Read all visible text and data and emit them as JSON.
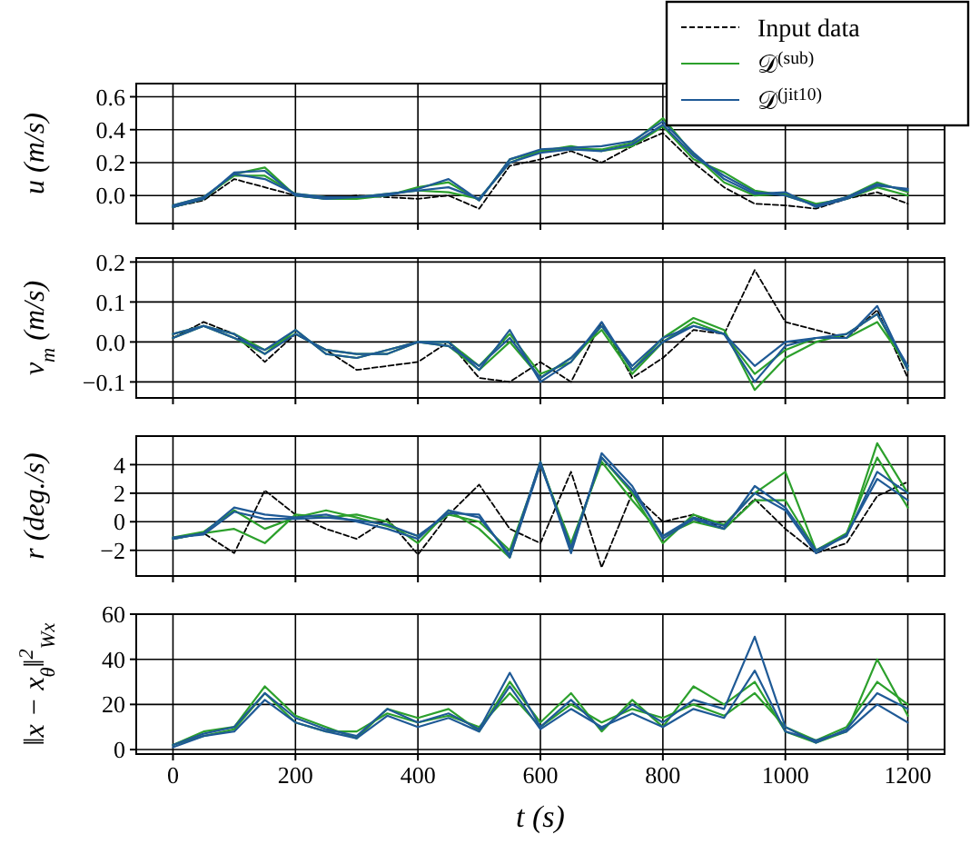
{
  "chart_data": [
    {
      "type": "line",
      "ylabel": "u (m/s)",
      "x": [
        0,
        50,
        100,
        150,
        200,
        250,
        300,
        350,
        400,
        450,
        500,
        550,
        600,
        650,
        700,
        750,
        800,
        850,
        900,
        950,
        1000,
        1050,
        1100,
        1150,
        1200
      ],
      "xlim": [
        -60,
        1260
      ],
      "xticks": [
        0,
        200,
        400,
        600,
        800,
        1000,
        1200
      ],
      "ylim": [
        -0.17,
        0.68
      ],
      "yticks": [
        {
          "value": 0,
          "label": "0.0"
        },
        {
          "value": 0.2,
          "label": "0.2"
        },
        {
          "value": 0.4,
          "label": "0.4"
        },
        {
          "value": 0.6,
          "label": "0.6"
        }
      ],
      "tick_labels": "y",
      "grid": true,
      "legend": "top right",
      "series": [
        {
          "name": "Input data",
          "color": "#000000",
          "line_style": "dashed",
          "values": [
            -0.07,
            -0.03,
            0.1,
            0.05,
            0.0,
            -0.02,
            0.0,
            -0.01,
            -0.02,
            0.0,
            -0.08,
            0.18,
            0.22,
            0.27,
            0.2,
            0.3,
            0.38,
            0.2,
            0.05,
            -0.05,
            -0.06,
            -0.08,
            -0.02,
            0.02,
            -0.05
          ]
        },
        {
          "name": "𝒟$^{(sub)}$",
          "color": "#2ca02c",
          "values": [
            -0.07,
            -0.02,
            0.13,
            0.17,
            0.0,
            -0.02,
            -0.02,
            0.0,
            0.05,
            0.08,
            -0.03,
            0.22,
            0.27,
            0.28,
            0.28,
            0.32,
            0.47,
            0.25,
            0.08,
            0.0,
            0.01,
            -0.05,
            -0.02,
            0.05,
            0.0
          ]
        },
        {
          "color": "#2ca02c",
          "values": [
            -0.06,
            -0.01,
            0.12,
            0.12,
            0.01,
            -0.01,
            -0.01,
            0.01,
            0.03,
            0.02,
            -0.02,
            0.2,
            0.27,
            0.3,
            0.27,
            0.3,
            0.42,
            0.22,
            0.14,
            0.03,
            0.0,
            -0.06,
            -0.01,
            0.08,
            0.02
          ]
        },
        {
          "name": "𝒟$^{(jit10)}$",
          "color": "#1f5a96",
          "values": [
            -0.07,
            -0.02,
            0.14,
            0.15,
            0.0,
            -0.02,
            -0.01,
            0.0,
            0.04,
            0.1,
            -0.03,
            0.22,
            0.28,
            0.29,
            0.3,
            0.33,
            0.45,
            0.26,
            0.1,
            0.01,
            0.02,
            -0.07,
            -0.02,
            0.06,
            0.04
          ]
        },
        {
          "color": "#1f5a96",
          "values": [
            -0.06,
            -0.01,
            0.13,
            0.1,
            0.01,
            -0.01,
            -0.01,
            0.01,
            0.03,
            0.05,
            -0.02,
            0.2,
            0.26,
            0.28,
            0.27,
            0.31,
            0.43,
            0.24,
            0.12,
            0.02,
            0.0,
            -0.06,
            -0.01,
            0.07,
            0.03
          ]
        }
      ]
    },
    {
      "type": "line",
      "ylabel": "v$_{m}$ (m/s)",
      "x": [
        0,
        50,
        100,
        150,
        200,
        250,
        300,
        350,
        400,
        450,
        500,
        550,
        600,
        650,
        700,
        750,
        800,
        850,
        900,
        950,
        1000,
        1050,
        1100,
        1150,
        1200
      ],
      "xlim": [
        -60,
        1260
      ],
      "xticks": [
        0,
        200,
        400,
        600,
        800,
        1000,
        1200
      ],
      "ylim": [
        -0.14,
        0.21
      ],
      "yticks": [
        {
          "value": -0.1,
          "label": "−0.1"
        },
        {
          "value": 0,
          "label": "0.0"
        },
        {
          "value": 0.1,
          "label": "0.1"
        },
        {
          "value": 0.2,
          "label": "0.2"
        }
      ],
      "tick_labels": "y",
      "grid": true,
      "series": [
        {
          "color": "#000000",
          "line_style": "dashed",
          "values": [
            0.01,
            0.05,
            0.02,
            -0.05,
            0.02,
            -0.02,
            -0.07,
            -0.06,
            -0.05,
            0.0,
            -0.09,
            -0.1,
            -0.05,
            -0.1,
            0.05,
            -0.09,
            -0.04,
            0.03,
            0.02,
            0.18,
            0.05,
            0.03,
            0.01,
            0.08,
            -0.09
          ]
        },
        {
          "color": "#2ca02c",
          "values": [
            0.01,
            0.04,
            0.02,
            -0.02,
            0.02,
            -0.02,
            -0.03,
            -0.03,
            0.0,
            0.0,
            -0.06,
            0.02,
            -0.08,
            -0.05,
            0.04,
            -0.07,
            0.01,
            0.06,
            0.03,
            -0.12,
            -0.04,
            0.0,
            0.02,
            0.07,
            -0.07
          ]
        },
        {
          "color": "#2ca02c",
          "values": [
            0.02,
            0.04,
            0.01,
            -0.03,
            0.03,
            -0.03,
            -0.04,
            -0.02,
            0.0,
            -0.01,
            -0.07,
            0.0,
            -0.09,
            -0.04,
            0.03,
            -0.08,
            0.0,
            0.05,
            0.02,
            -0.08,
            -0.02,
            0.01,
            0.01,
            0.05,
            -0.06
          ]
        },
        {
          "color": "#1f5a96",
          "values": [
            0.01,
            0.04,
            0.02,
            -0.03,
            0.02,
            -0.02,
            -0.03,
            -0.03,
            0.0,
            0.0,
            -0.07,
            0.03,
            -0.1,
            -0.05,
            0.05,
            -0.07,
            0.0,
            0.04,
            0.02,
            -0.1,
            -0.01,
            0.01,
            0.01,
            0.09,
            -0.07
          ]
        },
        {
          "color": "#1f5a96",
          "values": [
            0.02,
            0.04,
            0.01,
            -0.02,
            0.03,
            -0.03,
            -0.04,
            -0.02,
            0.0,
            -0.01,
            -0.06,
            0.01,
            -0.09,
            -0.04,
            0.04,
            -0.06,
            0.01,
            0.04,
            0.02,
            -0.06,
            0.0,
            0.01,
            0.02,
            0.07,
            -0.06
          ]
        }
      ]
    },
    {
      "type": "line",
      "ylabel": "r (deg./s)",
      "x": [
        0,
        50,
        100,
        150,
        200,
        250,
        300,
        350,
        400,
        450,
        500,
        550,
        600,
        650,
        700,
        750,
        800,
        850,
        900,
        950,
        1000,
        1050,
        1100,
        1150,
        1200
      ],
      "xlim": [
        -60,
        1260
      ],
      "xticks": [
        0,
        200,
        400,
        600,
        800,
        1000,
        1200
      ],
      "ylim": [
        -3.8,
        6
      ],
      "yticks": [
        {
          "value": -2,
          "label": "−2"
        },
        0,
        2,
        4
      ],
      "tick_labels": "y",
      "grid": true,
      "series": [
        {
          "color": "#000000",
          "line_style": "dashed",
          "values": [
            -1.2,
            -0.8,
            -2.2,
            2.2,
            0.5,
            -0.5,
            -1.2,
            0.2,
            -2.3,
            0.5,
            2.6,
            -0.5,
            -1.5,
            3.5,
            -3.2,
            2.0,
            0.0,
            0.5,
            -0.5,
            1.6,
            -0.5,
            -2.2,
            -1.5,
            1.8,
            2.8
          ]
        },
        {
          "color": "#2ca02c",
          "values": [
            -1.2,
            -0.8,
            -0.5,
            -1.5,
            0.5,
            0.3,
            0.5,
            0.0,
            -1.5,
            0.8,
            -0.5,
            -2.5,
            4.2,
            -2.0,
            4.5,
            2.0,
            -1.5,
            0.5,
            -0.2,
            2.0,
            3.5,
            -2.0,
            -1.0,
            5.5,
            2.0
          ]
        },
        {
          "color": "#2ca02c",
          "values": [
            -1.1,
            -0.7,
            0.8,
            -0.5,
            0.3,
            0.8,
            0.3,
            -0.3,
            -1.0,
            0.5,
            0.0,
            -2.0,
            4.0,
            -1.5,
            4.2,
            1.5,
            -1.0,
            0.0,
            -0.5,
            1.5,
            1.5,
            -2.0,
            -0.8,
            4.5,
            1.0
          ]
        },
        {
          "color": "#1f5a96",
          "values": [
            -1.2,
            -0.8,
            1.0,
            0.5,
            0.3,
            0.5,
            0.0,
            -0.5,
            -1.2,
            0.8,
            0.3,
            -2.3,
            4.2,
            -2.2,
            4.8,
            2.5,
            -1.2,
            0.2,
            -0.5,
            2.5,
            1.0,
            -2.0,
            -1.0,
            3.5,
            2.0
          ]
        },
        {
          "color": "#1f5a96",
          "values": [
            -1.1,
            -0.9,
            0.7,
            0.2,
            0.2,
            0.3,
            0.1,
            -0.2,
            -1.0,
            0.6,
            0.5,
            -2.5,
            4.0,
            -1.8,
            4.5,
            2.2,
            -1.0,
            0.3,
            -0.3,
            2.0,
            0.8,
            -2.2,
            -0.9,
            3.0,
            1.5
          ]
        }
      ]
    },
    {
      "type": "line",
      "ylabel": "‖x − x$_{θ}$‖$^{2}$$_{Wx}$",
      "xlabel": "t (s)",
      "x": [
        0,
        50,
        100,
        150,
        200,
        250,
        300,
        350,
        400,
        450,
        500,
        550,
        600,
        650,
        700,
        750,
        800,
        850,
        900,
        950,
        1000,
        1050,
        1100,
        1150,
        1200
      ],
      "xlim": [
        -60,
        1260
      ],
      "xticks": [
        0,
        200,
        400,
        600,
        800,
        1000,
        1200
      ],
      "ylim": [
        -2,
        60
      ],
      "yticks": [
        0,
        20,
        40,
        60
      ],
      "grid": true,
      "series": [
        {
          "color": "#2ca02c",
          "values": [
            2,
            8,
            10,
            28,
            15,
            10,
            5,
            18,
            14,
            18,
            8,
            30,
            12,
            25,
            8,
            22,
            10,
            28,
            20,
            30,
            8,
            3,
            8,
            40,
            15
          ]
        },
        {
          "color": "#2ca02c",
          "values": [
            2,
            6,
            9,
            25,
            12,
            8,
            8,
            16,
            12,
            15,
            10,
            25,
            10,
            20,
            12,
            18,
            14,
            20,
            15,
            25,
            10,
            4,
            10,
            30,
            20
          ]
        },
        {
          "color": "#1f5a96",
          "values": [
            2,
            7,
            10,
            25,
            14,
            9,
            6,
            18,
            12,
            16,
            9,
            34,
            10,
            22,
            9,
            20,
            12,
            22,
            18,
            50,
            10,
            3,
            9,
            25,
            18
          ]
        },
        {
          "color": "#1f5a96",
          "values": [
            1,
            6,
            8,
            22,
            12,
            8,
            5,
            15,
            10,
            14,
            8,
            28,
            9,
            18,
            10,
            16,
            10,
            18,
            14,
            35,
            8,
            4,
            8,
            20,
            12
          ]
        }
      ]
    }
  ]
}
